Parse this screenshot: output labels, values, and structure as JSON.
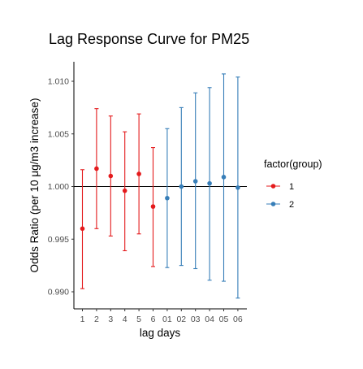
{
  "chart_data": {
    "type": "scatter",
    "title": "Lag Response Curve for PM25",
    "xlabel": "lag days",
    "ylabel": "Odds Ratio (per 10 μg/m3 increase)",
    "categories": [
      "1",
      "2",
      "3",
      "4",
      "5",
      "6",
      "01",
      "02",
      "03",
      "04",
      "05",
      "06"
    ],
    "yticks": [
      "0.990",
      "0.995",
      "1.000",
      "1.005",
      "1.010"
    ],
    "ylim": [
      0.9885,
      1.0115
    ],
    "reference_line": 1.0,
    "legend": {
      "title": "factor(group)",
      "position": "right"
    },
    "grid": false,
    "series": [
      {
        "name": "1",
        "color": "#E41A1C",
        "categories": [
          "1",
          "2",
          "3",
          "4",
          "5",
          "6"
        ],
        "values": [
          0.996,
          1.0017,
          1.001,
          0.9996,
          1.0012,
          0.9981
        ],
        "lower": [
          0.9903,
          0.996,
          0.9953,
          0.9939,
          0.9955,
          0.9924
        ],
        "upper": [
          1.0016,
          1.0074,
          1.0067,
          1.0052,
          1.0069,
          1.0037
        ]
      },
      {
        "name": "2",
        "color": "#377EB8",
        "categories": [
          "01",
          "02",
          "03",
          "04",
          "05",
          "06"
        ],
        "values": [
          0.9989,
          1.0,
          1.0005,
          1.0003,
          1.0009,
          0.9999
        ],
        "lower": [
          0.9923,
          0.9925,
          0.9922,
          0.9911,
          0.991,
          0.9894
        ],
        "upper": [
          1.0055,
          1.0075,
          1.0089,
          1.0094,
          1.0107,
          1.0104
        ]
      }
    ]
  }
}
